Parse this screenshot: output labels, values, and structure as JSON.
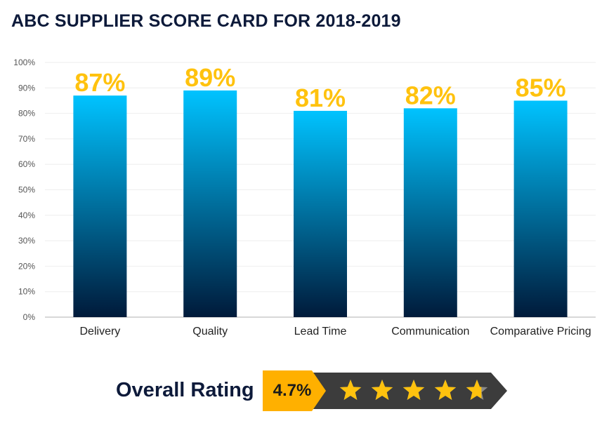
{
  "title": "ABC SUPPLIER SCORE CARD FOR 2018-2019",
  "colors": {
    "bar_top": "#00c3ff",
    "bar_bottom": "#001a3a",
    "data_label": "#ffc20e",
    "badge_orange": "#ffb000",
    "badge_dark": "#3c3c3c",
    "star": "#ffc20e"
  },
  "chart_data": {
    "type": "bar",
    "title": "ABC SUPPLIER SCORE CARD FOR 2018-2019",
    "categories": [
      "Delivery",
      "Quality",
      "Lead Time",
      "Communication",
      "Comparative Pricing"
    ],
    "values": [
      87,
      89,
      81,
      82,
      85
    ],
    "data_labels": [
      "87%",
      "89%",
      "81%",
      "82%",
      "85%"
    ],
    "ylim": [
      0,
      100
    ],
    "y_ticks": [
      "0%",
      "10%",
      "20%",
      "30%",
      "40%",
      "50%",
      "60%",
      "70%",
      "80%",
      "90%",
      "100%"
    ],
    "xlabel": "",
    "ylabel": "",
    "grid": true,
    "legend": "none"
  },
  "rating": {
    "label": "Overall Rating",
    "value": "4.7%",
    "stars": 4.7,
    "max_stars": 5,
    "icon": "star-icon"
  }
}
